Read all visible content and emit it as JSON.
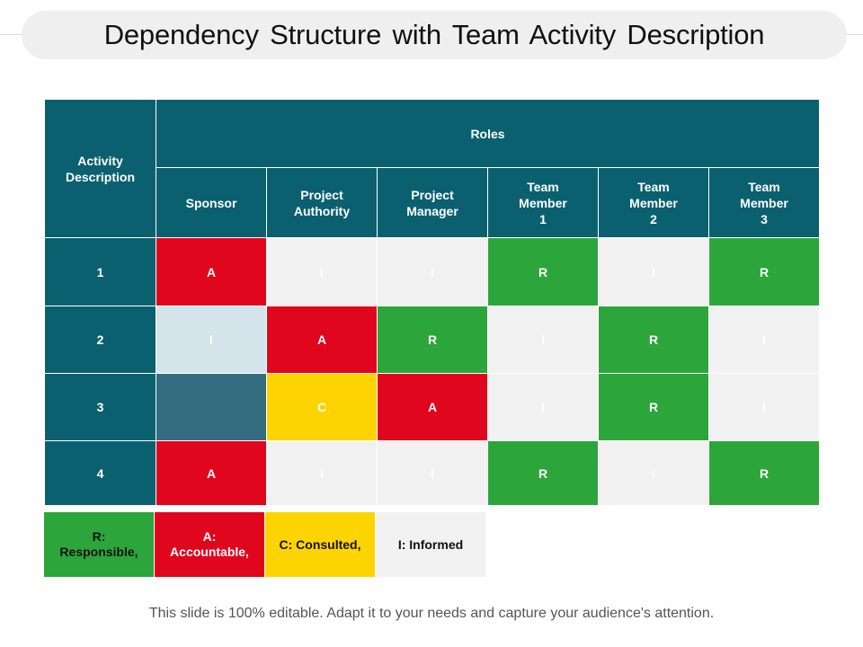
{
  "title": "Dependency Structure with Team Activity Description",
  "table": {
    "activity_header": "Activity Description",
    "roles_header": "Roles",
    "roles": [
      "Sponsor",
      "Project Authority",
      "Project Manager",
      "Team Member 1",
      "Team Member 2",
      "Team Member 3"
    ],
    "rows": [
      {
        "label": "1",
        "cells": [
          "A",
          "I",
          "I",
          "R",
          "I",
          "R"
        ]
      },
      {
        "label": "2",
        "cells": [
          "I",
          "A",
          "R",
          "I",
          "R",
          "I"
        ]
      },
      {
        "label": "3",
        "cells": [
          "",
          "C",
          "A",
          "I",
          "R",
          "I"
        ]
      },
      {
        "label": "4",
        "cells": [
          "A",
          "I",
          "I",
          "R",
          "I",
          "R"
        ]
      }
    ],
    "colors": {
      "header": "#0b6070",
      "A": "#e0061d",
      "R": "#2ca53a",
      "C": "#fcd401",
      "I": "#f1f1f1",
      "I_light": "#d5e4ea",
      "blank": "#346d80"
    }
  },
  "legend": {
    "responsible": "R: Responsible,",
    "accountable": "A: Accountable,",
    "consulted": "C: Consulted,",
    "informed": "I: Informed"
  },
  "footer": "This slide is 100% editable. Adapt it to your needs and capture your audience's attention."
}
